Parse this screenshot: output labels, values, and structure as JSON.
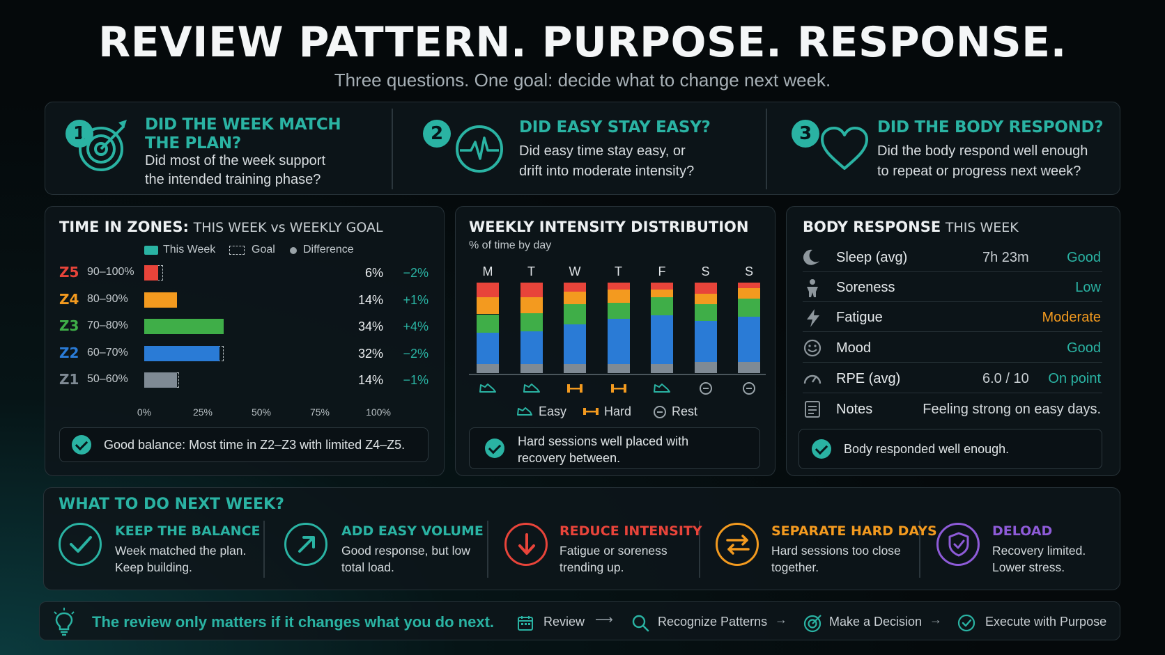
{
  "header": {
    "title": "REVIEW PATTERN. PURPOSE. RESPONSE.",
    "subtitle": "Three questions. One goal: decide what to change next week."
  },
  "questions": [
    {
      "num": "1",
      "title_line1": "DID THE WEEK MATCH",
      "title_line2": "THE PLAN?",
      "text_line1": "Did most of the week support",
      "text_line2": "the intended training phase?",
      "icon": "target-icon"
    },
    {
      "num": "2",
      "title_line1": "DID EASY STAY EASY?",
      "text_line1": "Did easy time stay easy, or",
      "text_line2": "drift into moderate intensity?",
      "icon": "heartbeat-icon"
    },
    {
      "num": "3",
      "title_line1": "DID THE BODY RESPOND?",
      "text_line1": "Did the body respond well enough",
      "text_line2": "to repeat or progress next week?",
      "icon": "heart-icon"
    }
  ],
  "zones_panel": {
    "title_bold": "TIME IN ZONES:",
    "title_light": "THIS WEEK vs WEEKLY GOAL",
    "legend": {
      "this_week": "This Week",
      "goal": "Goal",
      "difference": "Difference"
    },
    "ticks": [
      "0%",
      "25%",
      "50%",
      "75%",
      "100%"
    ],
    "callout": "Good balance: Most time in Z2–Z3 with limited Z4–Z5."
  },
  "chart_data": [
    {
      "type": "bar",
      "title": "TIME IN ZONES: THIS WEEK vs WEEKLY GOAL",
      "categories": [
        "Z5",
        "Z4",
        "Z3",
        "Z2",
        "Z1"
      ],
      "ranges": [
        "90–100%",
        "80–90%",
        "70–80%",
        "60–70%",
        "50–60%"
      ],
      "series": [
        {
          "name": "This Week",
          "values": [
            6,
            14,
            34,
            32,
            14
          ]
        },
        {
          "name": "Goal",
          "values": [
            8,
            13,
            30,
            34,
            15
          ]
        },
        {
          "name": "Difference",
          "labels": [
            "−2%",
            "+1%",
            "+4%",
            "−2%",
            "−1%"
          ]
        }
      ],
      "value_labels": [
        "6%",
        "14%",
        "34%",
        "32%",
        "14%"
      ],
      "xlim": [
        0,
        100
      ],
      "colors": [
        "#e8443a",
        "#f39a1f",
        "#3fae48",
        "#2a7bd6",
        "#7f8a94"
      ]
    },
    {
      "type": "bar",
      "title": "WEEKLY INTENSITY DISTRIBUTION",
      "subtitle": "% of time by day",
      "categories": [
        "M",
        "T",
        "W",
        "T",
        "F",
        "S",
        "S"
      ],
      "stacking": "stacked",
      "series": [
        {
          "name": "Z1",
          "values": [
            10,
            10,
            10,
            10,
            10,
            12,
            12
          ]
        },
        {
          "name": "Z2",
          "values": [
            35,
            36,
            44,
            50,
            54,
            46,
            50
          ]
        },
        {
          "name": "Z3",
          "values": [
            20,
            20,
            22,
            18,
            20,
            18,
            20
          ]
        },
        {
          "name": "Z4",
          "values": [
            19,
            18,
            14,
            14,
            8,
            12,
            12
          ]
        },
        {
          "name": "Z5",
          "values": [
            16,
            16,
            10,
            8,
            8,
            12,
            6
          ]
        }
      ],
      "day_types": [
        "Easy",
        "Easy",
        "Hard",
        "Hard",
        "Easy",
        "Rest",
        "Rest"
      ],
      "ylim": [
        0,
        100
      ]
    }
  ],
  "intensity_panel": {
    "title": "WEEKLY INTENSITY DISTRIBUTION",
    "subtitle": "% of time by day",
    "legend": {
      "easy": "Easy",
      "hard": "Hard",
      "rest": "Rest"
    },
    "callout_line1": "Hard sessions well placed with",
    "callout_line2": "recovery between."
  },
  "body_panel": {
    "title_bold": "BODY RESPONSE",
    "title_light": "THIS WEEK",
    "rows": [
      {
        "icon": "moon-icon",
        "label": "Sleep (avg)",
        "value": "7h 23m",
        "status": "Good",
        "status_color": "#2ab3a3"
      },
      {
        "icon": "person-icon",
        "label": "Soreness",
        "value": "",
        "status": "Low",
        "status_color": "#2ab3a3"
      },
      {
        "icon": "bolt-icon",
        "label": "Fatigue",
        "value": "",
        "status": "Moderate",
        "status_color": "#f39a1f"
      },
      {
        "icon": "smile-icon",
        "label": "Mood",
        "value": "",
        "status": "Good",
        "status_color": "#2ab3a3"
      },
      {
        "icon": "gauge-icon",
        "label": "RPE (avg)",
        "value": "6.0 / 10",
        "status": "On point",
        "status_color": "#2ab3a3"
      },
      {
        "icon": "notes-icon",
        "label": "Notes",
        "value": "",
        "status": "Feeling strong on easy days.",
        "status_color": "#d6dbde"
      }
    ],
    "callout": "Body responded well enough."
  },
  "next_week": {
    "title": "WHAT TO DO NEXT WEEK?",
    "items": [
      {
        "icon": "check-icon",
        "head": "KEEP THE BALANCE",
        "line1": "Week matched the plan.",
        "line2": "Keep building.",
        "color": "#2ab3a3"
      },
      {
        "icon": "arrow-up-right-icon",
        "head": "ADD EASY VOLUME",
        "line1": "Good response, but low",
        "line2": "total load.",
        "color": "#2ab3a3"
      },
      {
        "icon": "arrow-down-icon",
        "head": "REDUCE INTENSITY",
        "line1": "Fatigue or soreness",
        "line2": "trending up.",
        "color": "#e8443a"
      },
      {
        "icon": "swap-icon",
        "head": "SEPARATE HARD DAYS",
        "line1": "Hard sessions too close",
        "line2": "together.",
        "color": "#f39a1f"
      },
      {
        "icon": "shield-icon",
        "head": "DELOAD",
        "line1": "Recovery limited.",
        "line2": "Lower stress.",
        "color": "#8e5bd8"
      }
    ]
  },
  "footer": {
    "tagline": "The review only matters if it changes what you do next.",
    "steps": [
      "Review",
      "Recognize Patterns",
      "Make a Decision",
      "Execute with Purpose"
    ]
  }
}
